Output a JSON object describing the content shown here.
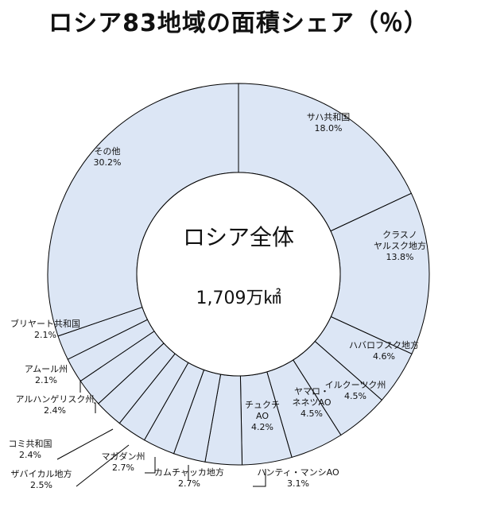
{
  "chart_data": {
    "type": "pie",
    "title": "ロシア83地域の面積シェア（％）",
    "center_label": "ロシア全体",
    "center_value": "1,709万㎢",
    "fill_color": "#dce6f5",
    "stroke_color": "#000000",
    "slices": [
      {
        "label": [
          "サハ共和国"
        ],
        "value_text": "18.0%",
        "value": 18.0
      },
      {
        "label": [
          "クラスノ",
          "ヤルスク地方"
        ],
        "value_text": "13.8%",
        "value": 13.8
      },
      {
        "label": [
          "ハバロフスク地方"
        ],
        "value_text": "4.6%",
        "value": 4.6
      },
      {
        "label": [
          "イルクーツク州"
        ],
        "value_text": "4.5%",
        "value": 4.5
      },
      {
        "label": [
          "ヤマロ・",
          "ネネツAO"
        ],
        "value_text": "4.5%",
        "value": 4.5
      },
      {
        "label": [
          "チュクチ",
          "AO"
        ],
        "value_text": "4.2%",
        "value": 4.2
      },
      {
        "label": [
          "ハンティ・マンシAO"
        ],
        "value_text": "3.1%",
        "value": 3.1
      },
      {
        "label": [
          "カムチャッカ地方"
        ],
        "value_text": "2.7%",
        "value": 2.7
      },
      {
        "label": [
          "マガダン州"
        ],
        "value_text": "2.7%",
        "value": 2.7
      },
      {
        "label": [
          "ザバイカル地方"
        ],
        "value_text": "2.5%",
        "value": 2.5
      },
      {
        "label": [
          "コミ共和国"
        ],
        "value_text": "2.4%",
        "value": 2.4
      },
      {
        "label": [
          "アルハンゲリスク州"
        ],
        "value_text": "2.4%",
        "value": 2.4
      },
      {
        "label": [
          "アムール州"
        ],
        "value_text": "2.1%",
        "value": 2.1
      },
      {
        "label": [
          "ブリヤート共和国"
        ],
        "value_text": "2.1%",
        "value": 2.1
      },
      {
        "label": [
          "その他"
        ],
        "value_text": "30.2%",
        "value": 30.2
      }
    ]
  }
}
